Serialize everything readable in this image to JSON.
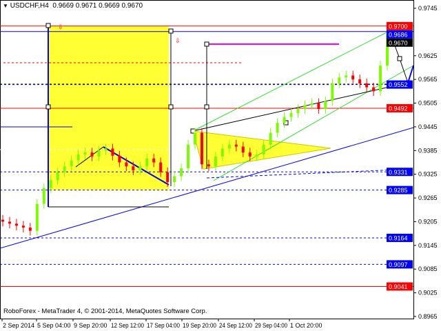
{
  "header": {
    "symbol": "USDCHF,H4",
    "ohlc": "0.9669 0.9671 0.9669 0.9670"
  },
  "footer": {
    "copyright": "RoboForex - MetaTrader 4, © 2001-2014, MetaQuotes Software Corp."
  },
  "chart_data": {
    "type": "candlestick",
    "ylim": [
      0.8965,
      0.9745
    ],
    "grid": false,
    "y_ticks": [
      "0.9745",
      "0.9625",
      "0.9565",
      "0.9505",
      "0.9445",
      "0.9385",
      "0.9325",
      "0.9265",
      "0.9205",
      "0.9145",
      "0.9085",
      "0.9025",
      "0.8965"
    ],
    "x_ticks": [
      "2 Sep 2014",
      "5 Sep 04:00",
      "9 Sep 20:00",
      "12 Sep 12:00",
      "17 Sep 04:00",
      "19 Sep 20:00",
      "24 Sep 12:00",
      "29 Sep 04:00",
      "1 Oct 20:00"
    ],
    "closes": [
      0.9205,
      0.92,
      0.9195,
      0.919,
      0.9182,
      0.925,
      0.929,
      0.931,
      0.933,
      0.9345,
      0.936,
      0.9375,
      0.938,
      0.937,
      0.9385,
      0.939,
      0.9372,
      0.9355,
      0.9345,
      0.9335,
      0.9345,
      0.9365,
      0.9355,
      0.933,
      0.9305,
      0.932,
      0.934,
      0.94,
      0.943,
      0.935,
      0.9345,
      0.937,
      0.939,
      0.94,
      0.9395,
      0.938,
      0.937,
      0.9375,
      0.94,
      0.943,
      0.9455,
      0.947,
      0.948,
      0.949,
      0.95,
      0.9505,
      0.949,
      0.951,
      0.9555,
      0.957,
      0.9575,
      0.9565,
      0.9555,
      0.9545,
      0.9535,
      0.96,
      0.968,
      0.967
    ],
    "levels": [
      {
        "price": "0.9700",
        "color": "#ff0000",
        "style": "solid"
      },
      {
        "price": "0.9686",
        "color": "#0000ff",
        "style": "solid"
      },
      {
        "price": "0.9670",
        "color": "#000000",
        "style": "current"
      },
      {
        "price": "0.9552",
        "color": "#0000ff",
        "style": "dashed"
      },
      {
        "price": "0.9492",
        "color": "#ff0000",
        "style": "solid"
      },
      {
        "price": "0.9331",
        "color": "#0000ff",
        "style": "dashed"
      },
      {
        "price": "0.9285",
        "color": "#0000ff",
        "style": "dashed"
      },
      {
        "price": "0.9164",
        "color": "#0000ff",
        "style": "dashed"
      },
      {
        "price": "0.9097",
        "color": "#0000ff",
        "style": "dashed"
      },
      {
        "price": "0.9041",
        "color": "#ff0000",
        "style": "solid"
      }
    ],
    "colors": {
      "up": "#7cfc00",
      "down": "#ff0000",
      "zone": "#ffff33",
      "channel": "#33dd33",
      "trend": "#0000ff",
      "target": "#ff00ff"
    }
  }
}
